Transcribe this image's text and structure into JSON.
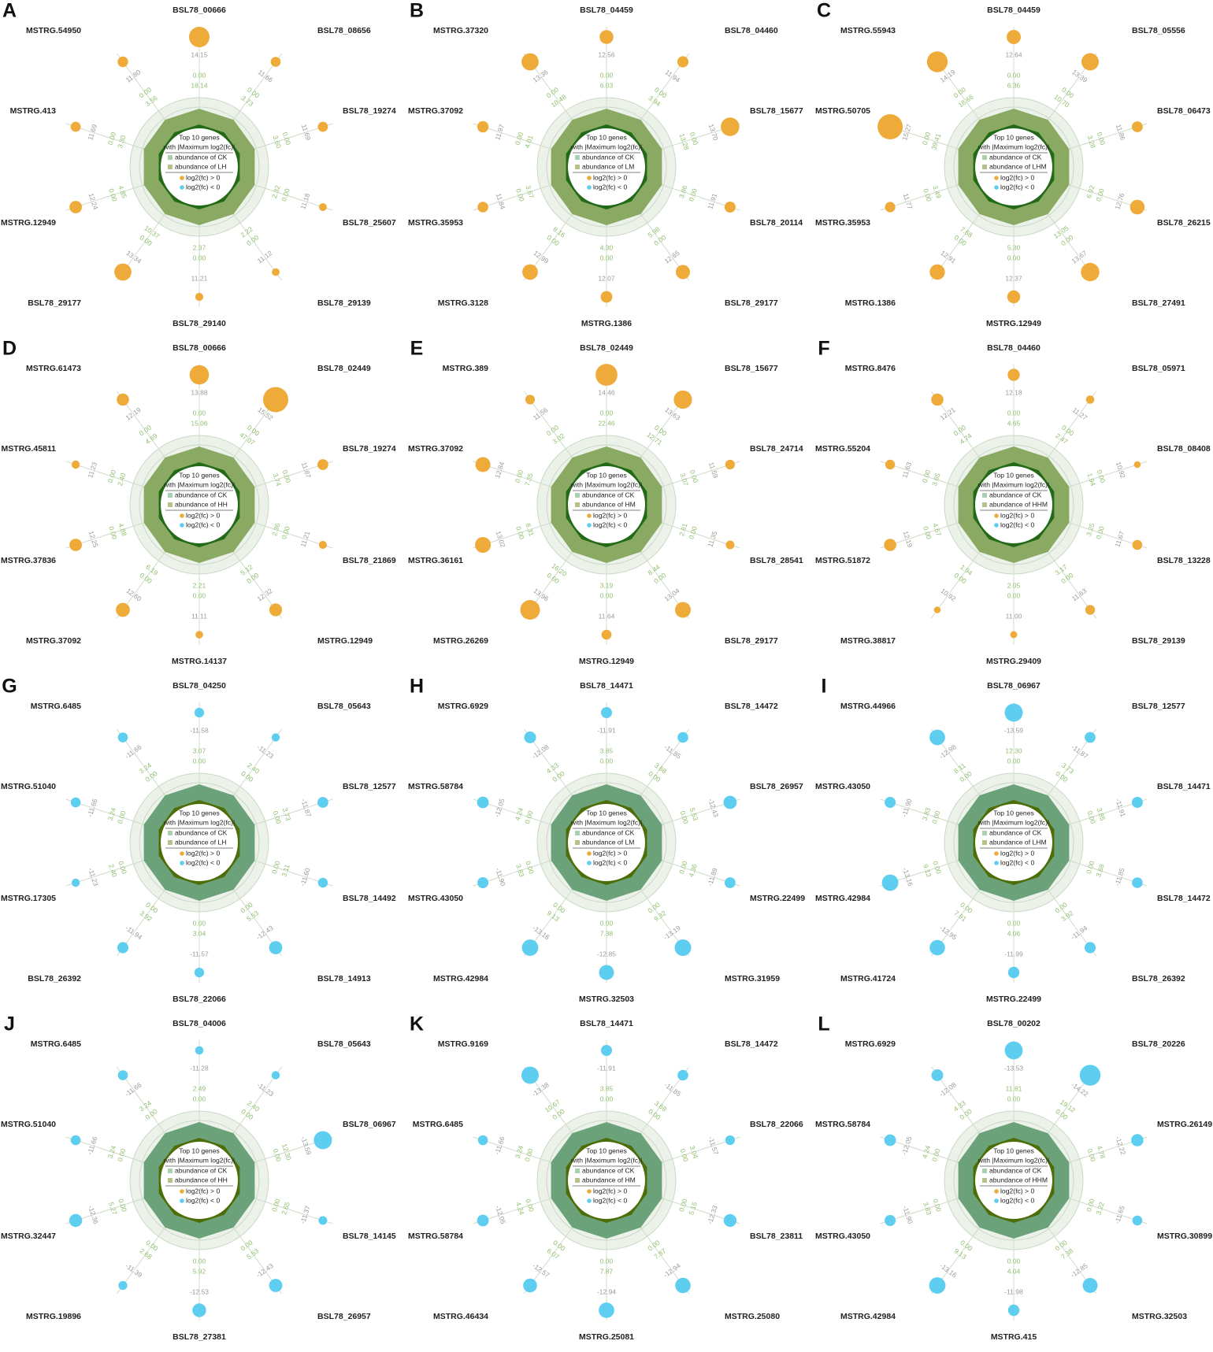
{
  "colors": {
    "up": "#efab3a",
    "down": "#5dcdf0",
    "ring_fill": "#ecf2ea",
    "ring_stroke": "#c9d8c6",
    "spoke": "#cfdcc9",
    "poly_up_outer": "#8aaa63",
    "poly_up_inner": "#236a18",
    "poly_down_outer": "#6ba27a",
    "poly_down_inner": "#4d6d08",
    "abundance_ck_swatch": "#a9d0b0",
    "abundance_trt_swatch": "#b6c08a"
  },
  "legend": {
    "title1": "Top 10 genes",
    "title2": "with |Maximum log2(fc)|",
    "ck": "abundance of CK",
    "up": "log2(fc) > 0",
    "down": "log2(fc) < 0"
  },
  "chart_data": [
    {
      "type": "radial",
      "panel": "A",
      "direction": "up",
      "treatment": "abundance of LH",
      "genes": [
        {
          "name": "BSL78_00666",
          "fc": "14.15",
          "ab_ck": "0.00",
          "ab_trt": "18.14"
        },
        {
          "name": "BSL78_08656",
          "fc": "11.66",
          "ab_ck": "0.00",
          "ab_trt": "3.73"
        },
        {
          "name": "BSL78_19274",
          "fc": "11.69",
          "ab_ck": "0.00",
          "ab_trt": "3.60"
        },
        {
          "name": "BSL78_25607",
          "fc": "11.18",
          "ab_ck": "0.00",
          "ab_trt": "2.32"
        },
        {
          "name": "BSL78_29139",
          "fc": "11.12",
          "ab_ck": "0.00",
          "ab_trt": "2.22"
        },
        {
          "name": "BSL78_29140",
          "fc": "11.21",
          "ab_ck": "0.00",
          "ab_trt": "2.37"
        },
        {
          "name": "BSL78_29177",
          "fc": "13.34",
          "ab_ck": "0.00",
          "ab_trt": "10.37"
        },
        {
          "name": "MSTRG.12949",
          "fc": "12.24",
          "ab_ck": "0.00",
          "ab_trt": "4.85"
        },
        {
          "name": "MSTRG.413",
          "fc": "11.69",
          "ab_ck": "0.00",
          "ab_trt": "3.30"
        },
        {
          "name": "MSTRG.54950",
          "fc": "11.80",
          "ab_ck": "0.00",
          "ab_trt": "3.56"
        }
      ]
    },
    {
      "type": "radial",
      "panel": "B",
      "direction": "up",
      "treatment": "abundance of LM",
      "genes": [
        {
          "name": "BSL78_04459",
          "fc": "12.56",
          "ab_ck": "0.00",
          "ab_trt": "6.03"
        },
        {
          "name": "BSL78_04460",
          "fc": "11.94",
          "ab_ck": "0.00",
          "ab_trt": "3.94"
        },
        {
          "name": "BSL78_15677",
          "fc": "13.70",
          "ab_ck": "0.00",
          "ab_trt": "13.28"
        },
        {
          "name": "BSL78_20114",
          "fc": "11.91",
          "ab_ck": "0.00",
          "ab_trt": "3.86"
        },
        {
          "name": "BSL78_29177",
          "fc": "12.65",
          "ab_ck": "0.00",
          "ab_trt": "5.98"
        },
        {
          "name": "MSTRG.1386",
          "fc": "12.07",
          "ab_ck": "0.00",
          "ab_trt": "4.30"
        },
        {
          "name": "MSTRG.3128",
          "fc": "12.99",
          "ab_ck": "0.00",
          "ab_trt": "8.16"
        },
        {
          "name": "MSTRG.35953",
          "fc": "11.84",
          "ab_ck": "0.00",
          "ab_trt": "3.67"
        },
        {
          "name": "MSTRG.37092",
          "fc": "11.97",
          "ab_ck": "0.00",
          "ab_trt": "4.01"
        },
        {
          "name": "MSTRG.37320",
          "fc": "13.36",
          "ab_ck": "0.00",
          "ab_trt": "10.48"
        }
      ]
    },
    {
      "type": "radial",
      "panel": "C",
      "direction": "up",
      "treatment": "abundance of LHM",
      "genes": [
        {
          "name": "BSL78_04459",
          "fc": "12.64",
          "ab_ck": "0.00",
          "ab_trt": "6.36"
        },
        {
          "name": "BSL78_05556",
          "fc": "13.39",
          "ab_ck": "0.00",
          "ab_trt": "10.70"
        },
        {
          "name": "BSL78_06473",
          "fc": "11.86",
          "ab_ck": "0.00",
          "ab_trt": "3.28"
        },
        {
          "name": "BSL78_26215",
          "fc": "12.76",
          "ab_ck": "0.00",
          "ab_trt": "6.92"
        },
        {
          "name": "BSL78_27491",
          "fc": "13.67",
          "ab_ck": "0.00",
          "ab_trt": "13.05"
        },
        {
          "name": "MSTRG.12949",
          "fc": "12.37",
          "ab_ck": "0.00",
          "ab_trt": "5.30"
        },
        {
          "name": "MSTRG.1386",
          "fc": "12.91",
          "ab_ck": "0.00",
          "ab_trt": "7.68"
        },
        {
          "name": "MSTRG.35953",
          "fc": "11.77",
          "ab_ck": "0.00",
          "ab_trt": "3.49"
        },
        {
          "name": "MSTRG.50705",
          "fc": "15.27",
          "ab_ck": "0.00",
          "ab_trt": "39.41"
        },
        {
          "name": "MSTRG.55943",
          "fc": "14.19",
          "ab_ck": "0.00",
          "ab_trt": "18.66"
        }
      ]
    },
    {
      "type": "radial",
      "panel": "D",
      "direction": "up",
      "treatment": "abundance of HH",
      "genes": [
        {
          "name": "BSL78_00666",
          "fc": "13.88",
          "ab_ck": "0.00",
          "ab_trt": "15.06"
        },
        {
          "name": "BSL78_02449",
          "fc": "15.52",
          "ab_ck": "0.00",
          "ab_trt": "47.07"
        },
        {
          "name": "BSL78_19274",
          "fc": "11.87",
          "ab_ck": "0.00",
          "ab_trt": "3.74"
        },
        {
          "name": "BSL78_21869",
          "fc": "11.21",
          "ab_ck": "0.00",
          "ab_trt": "2.36"
        },
        {
          "name": "MSTRG.12949",
          "fc": "12.32",
          "ab_ck": "0.00",
          "ab_trt": "5.12"
        },
        {
          "name": "MSTRG.14137",
          "fc": "11.11",
          "ab_ck": "0.00",
          "ab_trt": "2.21"
        },
        {
          "name": "MSTRG.37092",
          "fc": "12.60",
          "ab_ck": "0.00",
          "ab_trt": "6.19"
        },
        {
          "name": "MSTRG.37836",
          "fc": "12.25",
          "ab_ck": "0.00",
          "ab_trt": "4.88"
        },
        {
          "name": "MSTRG.45811",
          "fc": "11.23",
          "ab_ck": "0.00",
          "ab_trt": "2.40"
        },
        {
          "name": "MSTRG.61473",
          "fc": "12.19",
          "ab_ck": "0.00",
          "ab_trt": "4.69"
        }
      ]
    },
    {
      "type": "radial",
      "panel": "E",
      "direction": "up",
      "treatment": "abundance of HM",
      "genes": [
        {
          "name": "BSL78_02449",
          "fc": "14.46",
          "ab_ck": "0.00",
          "ab_trt": "22.46"
        },
        {
          "name": "BSL78_15677",
          "fc": "13.63",
          "ab_ck": "0.00",
          "ab_trt": "12.71"
        },
        {
          "name": "BSL78_24714",
          "fc": "11.59",
          "ab_ck": "0.00",
          "ab_trt": "3.07"
        },
        {
          "name": "BSL78_28541",
          "fc": "11.35",
          "ab_ck": "0.00",
          "ab_trt": "2.61"
        },
        {
          "name": "BSL78_29177",
          "fc": "13.04",
          "ab_ck": "0.00",
          "ab_trt": "8.44"
        },
        {
          "name": "MSTRG.12949",
          "fc": "11.64",
          "ab_ck": "0.00",
          "ab_trt": "3.19"
        },
        {
          "name": "MSTRG.26269",
          "fc": "13.96",
          "ab_ck": "0.00",
          "ab_trt": "16.20"
        },
        {
          "name": "MSTRG.36161",
          "fc": "13.02",
          "ab_ck": "0.00",
          "ab_trt": "8.31"
        },
        {
          "name": "MSTRG.37092",
          "fc": "12.84",
          "ab_ck": "0.00",
          "ab_trt": "7.35"
        },
        {
          "name": "MSTRG.389",
          "fc": "11.56",
          "ab_ck": "0.00",
          "ab_trt": "3.02"
        }
      ]
    },
    {
      "type": "radial",
      "panel": "F",
      "direction": "up",
      "treatment": "abundance of HHM",
      "genes": [
        {
          "name": "BSL78_04460",
          "fc": "12.18",
          "ab_ck": "0.00",
          "ab_trt": "4.65"
        },
        {
          "name": "BSL78_05971",
          "fc": "11.27",
          "ab_ck": "0.00",
          "ab_trt": "2.47"
        },
        {
          "name": "BSL78_08408",
          "fc": "10.92",
          "ab_ck": "0.00",
          "ab_trt": "1.94"
        },
        {
          "name": "BSL78_13228",
          "fc": "11.67",
          "ab_ck": "0.00",
          "ab_trt": "3.25"
        },
        {
          "name": "BSL78_29139",
          "fc": "11.63",
          "ab_ck": "0.00",
          "ab_trt": "3.17"
        },
        {
          "name": "MSTRG.29409",
          "fc": "11.00",
          "ab_ck": "0.00",
          "ab_trt": "2.05"
        },
        {
          "name": "MSTRG.38817",
          "fc": "10.92",
          "ab_ck": "0.00",
          "ab_trt": "1.94"
        },
        {
          "name": "MSTRG.51872",
          "fc": "12.19",
          "ab_ck": "0.00",
          "ab_trt": "4.67"
        },
        {
          "name": "MSTRG.55204",
          "fc": "11.63",
          "ab_ck": "0.00",
          "ab_trt": "3.65"
        },
        {
          "name": "MSTRG.8476",
          "fc": "12.21",
          "ab_ck": "0.00",
          "ab_trt": "4.74"
        }
      ]
    },
    {
      "type": "radial",
      "panel": "G",
      "direction": "down",
      "treatment": "abundance of LH",
      "genes": [
        {
          "name": "BSL78_04250",
          "fc": "-11.58",
          "ab_ck": "3.07",
          "ab_trt": "0.00"
        },
        {
          "name": "BSL78_05643",
          "fc": "-11.23",
          "ab_ck": "2.40",
          "ab_trt": "0.00"
        },
        {
          "name": "BSL78_12577",
          "fc": "-11.87",
          "ab_ck": "3.73",
          "ab_trt": "0.00"
        },
        {
          "name": "BSL78_14492",
          "fc": "-11.60",
          "ab_ck": "3.11",
          "ab_trt": "0.00"
        },
        {
          "name": "BSL78_14913",
          "fc": "-12.43",
          "ab_ck": "5.53",
          "ab_trt": "0.00"
        },
        {
          "name": "BSL78_22066",
          "fc": "-11.57",
          "ab_ck": "3.04",
          "ab_trt": "0.00"
        },
        {
          "name": "BSL78_26392",
          "fc": "-11.94",
          "ab_ck": "3.92",
          "ab_trt": "0.00"
        },
        {
          "name": "MSTRG.17305",
          "fc": "-11.23",
          "ab_ck": "2.40",
          "ab_trt": "0.00"
        },
        {
          "name": "MSTRG.51040",
          "fc": "-11.66",
          "ab_ck": "3.24",
          "ab_trt": "0.00"
        },
        {
          "name": "MSTRG.6485",
          "fc": "-11.66",
          "ab_ck": "3.24",
          "ab_trt": "0.00"
        }
      ]
    },
    {
      "type": "radial",
      "panel": "H",
      "direction": "down",
      "treatment": "abundance of LM",
      "genes": [
        {
          "name": "BSL78_14471",
          "fc": "-11.91",
          "ab_ck": "3.85",
          "ab_trt": "0.00"
        },
        {
          "name": "BSL78_14472",
          "fc": "-11.85",
          "ab_ck": "3.68",
          "ab_trt": "0.00"
        },
        {
          "name": "BSL78_26957",
          "fc": "-12.43",
          "ab_ck": "5.53",
          "ab_trt": "0.00"
        },
        {
          "name": "MSTRG.22499",
          "fc": "-11.89",
          "ab_ck": "4.36",
          "ab_trt": "0.00"
        },
        {
          "name": "MSTRG.31959",
          "fc": "-13.19",
          "ab_ck": "9.32",
          "ab_trt": "0.00"
        },
        {
          "name": "MSTRG.32503",
          "fc": "-12.85",
          "ab_ck": "7.38",
          "ab_trt": "0.00"
        },
        {
          "name": "MSTRG.42984",
          "fc": "-13.16",
          "ab_ck": "9.13",
          "ab_trt": "0.00"
        },
        {
          "name": "MSTRG.43050",
          "fc": "-11.90",
          "ab_ck": "3.83",
          "ab_trt": "0.00"
        },
        {
          "name": "MSTRG.58784",
          "fc": "-12.05",
          "ab_ck": "4.24",
          "ab_trt": "0.00"
        },
        {
          "name": "MSTRG.6929",
          "fc": "-12.08",
          "ab_ck": "4.33",
          "ab_trt": "0.00"
        }
      ]
    },
    {
      "type": "radial",
      "panel": "I",
      "direction": "down",
      "treatment": "abundance of LHM",
      "genes": [
        {
          "name": "BSL78_06967",
          "fc": "-13.59",
          "ab_ck": "12.30",
          "ab_trt": "0.00"
        },
        {
          "name": "BSL78_12577",
          "fc": "-11.87",
          "ab_ck": "3.73",
          "ab_trt": "0.00"
        },
        {
          "name": "BSL78_14471",
          "fc": "-11.91",
          "ab_ck": "3.85",
          "ab_trt": "0.00"
        },
        {
          "name": "BSL78_14472",
          "fc": "-11.85",
          "ab_ck": "3.68",
          "ab_trt": "0.00"
        },
        {
          "name": "BSL78_26392",
          "fc": "-11.94",
          "ab_ck": "3.92",
          "ab_trt": "0.00"
        },
        {
          "name": "MSTRG.22499",
          "fc": "-11.99",
          "ab_ck": "4.06",
          "ab_trt": "0.00"
        },
        {
          "name": "MSTRG.41724",
          "fc": "-12.95",
          "ab_ck": "7.91",
          "ab_trt": "0.00"
        },
        {
          "name": "MSTRG.42984",
          "fc": "-13.16",
          "ab_ck": "9.13",
          "ab_trt": "0.00"
        },
        {
          "name": "MSTRG.43050",
          "fc": "-11.90",
          "ab_ck": "3.83",
          "ab_trt": "0.00"
        },
        {
          "name": "MSTRG.44966",
          "fc": "-12.98",
          "ab_ck": "8.11",
          "ab_trt": "0.00"
        }
      ]
    },
    {
      "type": "radial",
      "panel": "J",
      "direction": "down",
      "treatment": "abundance of HH",
      "genes": [
        {
          "name": "BSL78_04006",
          "fc": "-11.28",
          "ab_ck": "2.49",
          "ab_trt": "0.00"
        },
        {
          "name": "BSL78_05643",
          "fc": "-11.23",
          "ab_ck": "2.40",
          "ab_trt": "0.00"
        },
        {
          "name": "BSL78_06967",
          "fc": "-13.59",
          "ab_ck": "12.30",
          "ab_trt": "0.00"
        },
        {
          "name": "BSL78_14145",
          "fc": "-11.37",
          "ab_ck": "2.65",
          "ab_trt": "0.00"
        },
        {
          "name": "BSL78_26957",
          "fc": "-12.43",
          "ab_ck": "5.53",
          "ab_trt": "0.00"
        },
        {
          "name": "BSL78_27381",
          "fc": "-12.53",
          "ab_ck": "5.92",
          "ab_trt": "0.00"
        },
        {
          "name": "MSTRG.19896",
          "fc": "-11.39",
          "ab_ck": "2.68",
          "ab_trt": "0.00"
        },
        {
          "name": "MSTRG.32447",
          "fc": "-12.36",
          "ab_ck": "5.27",
          "ab_trt": "0.00"
        },
        {
          "name": "MSTRG.51040",
          "fc": "-11.66",
          "ab_ck": "3.24",
          "ab_trt": "0.00"
        },
        {
          "name": "MSTRG.6485",
          "fc": "-11.66",
          "ab_ck": "3.24",
          "ab_trt": "0.00"
        }
      ]
    },
    {
      "type": "radial",
      "panel": "K",
      "direction": "down",
      "treatment": "abundance of HM",
      "genes": [
        {
          "name": "BSL78_14471",
          "fc": "-11.91",
          "ab_ck": "3.85",
          "ab_trt": "0.00"
        },
        {
          "name": "BSL78_14472",
          "fc": "-11.85",
          "ab_ck": "3.68",
          "ab_trt": "0.00"
        },
        {
          "name": "BSL78_22066",
          "fc": "-11.57",
          "ab_ck": "3.04",
          "ab_trt": "0.00"
        },
        {
          "name": "BSL78_23811",
          "fc": "-12.33",
          "ab_ck": "5.15",
          "ab_trt": "0.00"
        },
        {
          "name": "MSTRG.25080",
          "fc": "-12.94",
          "ab_ck": "7.87",
          "ab_trt": "0.00"
        },
        {
          "name": "MSTRG.25081",
          "fc": "-12.94",
          "ab_ck": "7.87",
          "ab_trt": "0.00"
        },
        {
          "name": "MSTRG.46434",
          "fc": "-12.57",
          "ab_ck": "6.07",
          "ab_trt": "0.00"
        },
        {
          "name": "MSTRG.58784",
          "fc": "-12.05",
          "ab_ck": "4.24",
          "ab_trt": "0.00"
        },
        {
          "name": "MSTRG.6485",
          "fc": "-11.66",
          "ab_ck": "3.24",
          "ab_trt": "0.00"
        },
        {
          "name": "MSTRG.9169",
          "fc": "-13.38",
          "ab_ck": "10.67",
          "ab_trt": "0.00"
        }
      ]
    },
    {
      "type": "radial",
      "panel": "L",
      "direction": "down",
      "treatment": "abundance of HHM",
      "genes": [
        {
          "name": "BSL78_00202",
          "fc": "-13.53",
          "ab_ck": "11.81",
          "ab_trt": "0.00"
        },
        {
          "name": "BSL78_20226",
          "fc": "-14.22",
          "ab_ck": "19.12",
          "ab_trt": "0.00"
        },
        {
          "name": "MSTRG.26149",
          "fc": "-12.22",
          "ab_ck": "4.78",
          "ab_trt": "0.00"
        },
        {
          "name": "MSTRG.30899",
          "fc": "-11.65",
          "ab_ck": "3.22",
          "ab_trt": "0.00"
        },
        {
          "name": "MSTRG.32503",
          "fc": "-12.85",
          "ab_ck": "7.38",
          "ab_trt": "0.00"
        },
        {
          "name": "MSTRG.415",
          "fc": "-11.98",
          "ab_ck": "4.04",
          "ab_trt": "0.00"
        },
        {
          "name": "MSTRG.42984",
          "fc": "-13.16",
          "ab_ck": "9.13",
          "ab_trt": "0.00"
        },
        {
          "name": "MSTRG.43050",
          "fc": "-11.90",
          "ab_ck": "3.83",
          "ab_trt": "0.00"
        },
        {
          "name": "MSTRG.58784",
          "fc": "-12.05",
          "ab_ck": "4.24",
          "ab_trt": "0.00"
        },
        {
          "name": "MSTRG.6929",
          "fc": "-12.08",
          "ab_ck": "4.33",
          "ab_trt": "0.00"
        }
      ]
    }
  ]
}
